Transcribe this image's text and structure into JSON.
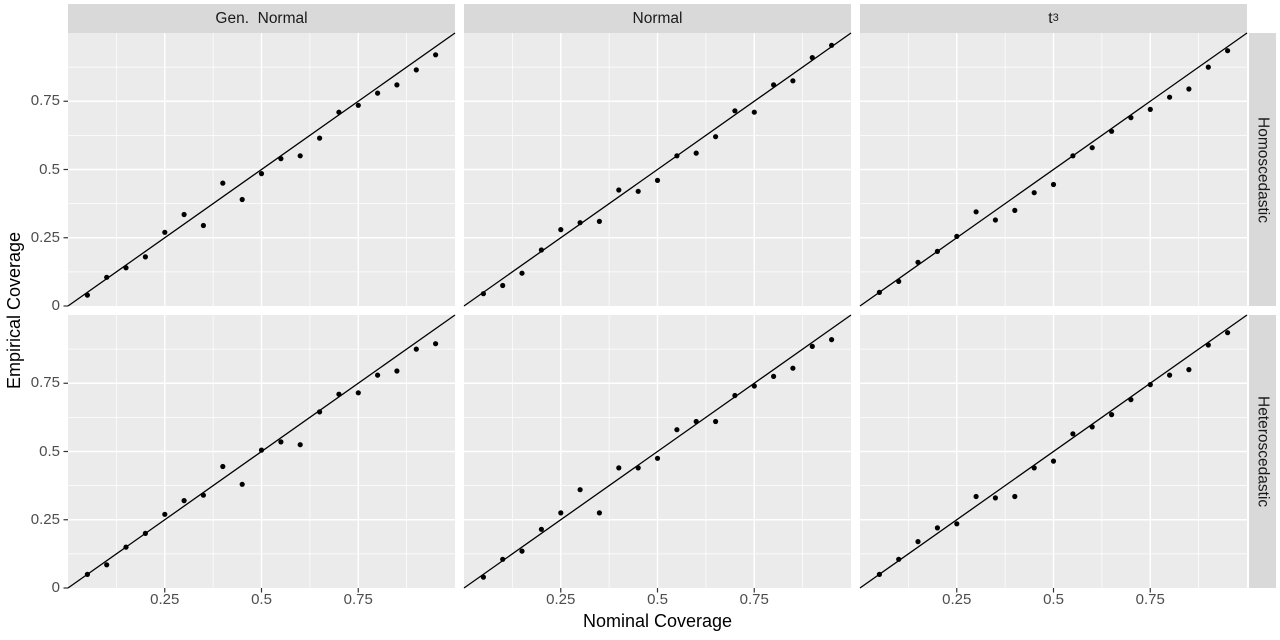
{
  "chart_data": {
    "type": "scatter",
    "description": "Faceted calibration scatter plot of empirical vs nominal coverage with y=x reference line in each panel",
    "xlabel": "Nominal Coverage",
    "ylabel": "Empirical Coverage",
    "xlim": [
      0,
      1
    ],
    "ylim": [
      0,
      1
    ],
    "grid": "major and minor white gridlines on gray panel background",
    "reference_line": "y = x",
    "x_ticks": {
      "values": [
        0.25,
        0.5,
        0.75
      ],
      "labels": [
        "0.25",
        "0.5",
        "0.75"
      ]
    },
    "y_ticks": {
      "values": [
        0,
        0.25,
        0.5,
        0.75
      ],
      "labels": [
        "0",
        "0.25",
        "0.5",
        "0.75"
      ]
    },
    "minor_grid_values": [
      0.125,
      0.375,
      0.625,
      0.875
    ],
    "facet_columns": [
      {
        "label": "Gen.  Normal"
      },
      {
        "label": "Normal"
      },
      {
        "label": "t",
        "sub": "3"
      }
    ],
    "facet_rows": [
      {
        "label": "Homoscedastic"
      },
      {
        "label": "Heteroscedastic"
      }
    ],
    "x": [
      0.05,
      0.1,
      0.15,
      0.2,
      0.25,
      0.3,
      0.35,
      0.4,
      0.45,
      0.5,
      0.55,
      0.6,
      0.65,
      0.7,
      0.75,
      0.8,
      0.85,
      0.9,
      0.95
    ],
    "panels": [
      {
        "col": "Gen. Normal",
        "row": "Homoscedastic",
        "y": [
          0.04,
          0.105,
          0.14,
          0.18,
          0.27,
          0.335,
          0.295,
          0.45,
          0.39,
          0.485,
          0.54,
          0.55,
          0.615,
          0.71,
          0.735,
          0.78,
          0.81,
          0.865,
          0.92
        ]
      },
      {
        "col": "Normal",
        "row": "Homoscedastic",
        "y": [
          0.045,
          0.075,
          0.12,
          0.205,
          0.28,
          0.305,
          0.31,
          0.425,
          0.42,
          0.46,
          0.55,
          0.56,
          0.62,
          0.715,
          0.71,
          0.81,
          0.825,
          0.91,
          0.955
        ]
      },
      {
        "col": "t3",
        "row": "Homoscedastic",
        "y": [
          0.05,
          0.09,
          0.16,
          0.2,
          0.255,
          0.345,
          0.315,
          0.35,
          0.415,
          0.445,
          0.55,
          0.58,
          0.64,
          0.69,
          0.72,
          0.765,
          0.795,
          0.875,
          0.935
        ]
      },
      {
        "col": "Gen. Normal",
        "row": "Heteroscedastic",
        "y": [
          0.05,
          0.085,
          0.15,
          0.2,
          0.27,
          0.32,
          0.34,
          0.445,
          0.38,
          0.505,
          0.535,
          0.525,
          0.645,
          0.71,
          0.715,
          0.78,
          0.795,
          0.875,
          0.895
        ]
      },
      {
        "col": "Normal",
        "row": "Heteroscedastic",
        "y": [
          0.04,
          0.105,
          0.135,
          0.215,
          0.275,
          0.36,
          0.275,
          0.44,
          0.44,
          0.475,
          0.58,
          0.61,
          0.61,
          0.705,
          0.74,
          0.775,
          0.805,
          0.885,
          0.91
        ]
      },
      {
        "col": "t3",
        "row": "Heteroscedastic",
        "y": [
          0.05,
          0.105,
          0.17,
          0.22,
          0.235,
          0.335,
          0.33,
          0.335,
          0.44,
          0.465,
          0.565,
          0.59,
          0.635,
          0.69,
          0.745,
          0.78,
          0.8,
          0.89,
          0.935
        ]
      }
    ],
    "colors": {
      "panel_background": "#EBEBEB",
      "strip_background": "#D9D9D9",
      "gridline": "#FFFFFF",
      "point": "#000000",
      "reference_line_color": "#000000",
      "tick_label": "#4D4D4D",
      "axis_title": "#000000",
      "strip_text": "#1A1A1A",
      "tick_mark": "#333333"
    }
  }
}
